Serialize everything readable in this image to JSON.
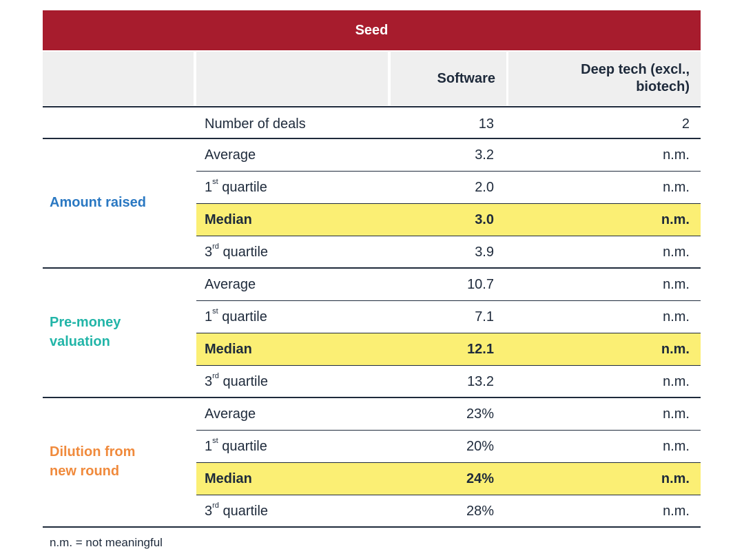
{
  "title": "Seed",
  "columns": [
    "",
    "",
    "Software",
    "Deep tech (excl., biotech)"
  ],
  "deals_row": {
    "label": "Number of deals",
    "software": "13",
    "deep_tech": "2"
  },
  "groups": [
    {
      "label": "Amount raised",
      "color": "#2a78c2",
      "rows": [
        {
          "label": "Average",
          "software": "3.2",
          "deep_tech": "n.m."
        },
        {
          "label": "1st quartile",
          "software": "2.0",
          "deep_tech": "n.m."
        },
        {
          "label": "Median",
          "software": "3.0",
          "deep_tech": "n.m."
        },
        {
          "label": "3rd quartile",
          "software": "3.9",
          "deep_tech": "n.m."
        }
      ]
    },
    {
      "label": "Pre-money valuation",
      "color": "#22b5a8",
      "rows": [
        {
          "label": "Average",
          "software": "10.7",
          "deep_tech": "n.m."
        },
        {
          "label": "1st quartile",
          "software": "7.1",
          "deep_tech": "n.m."
        },
        {
          "label": "Median",
          "software": "12.1",
          "deep_tech": "n.m."
        },
        {
          "label": "3rd quartile",
          "software": "13.2",
          "deep_tech": "n.m."
        }
      ]
    },
    {
      "label": "Dilution from new round",
      "color": "#f08a3c",
      "rows": [
        {
          "label": "Average",
          "software": "23%",
          "deep_tech": "n.m."
        },
        {
          "label": "1st quartile",
          "software": "20%",
          "deep_tech": "n.m."
        },
        {
          "label": "Median",
          "software": "24%",
          "deep_tech": "n.m."
        },
        {
          "label": "3rd quartile",
          "software": "28%",
          "deep_tech": "n.m."
        }
      ]
    }
  ],
  "footnote": "n.m. = not meaningful",
  "colors": {
    "banner": "#a71c2d",
    "header_bg": "#efefef",
    "median_bg": "#fbef74",
    "rule": "#1e2a3b"
  }
}
